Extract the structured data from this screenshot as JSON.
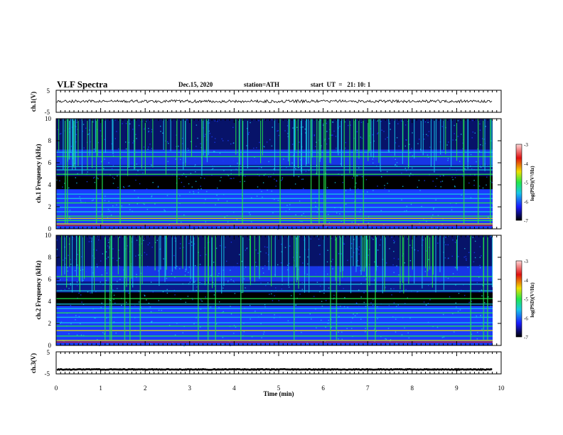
{
  "header": {
    "title": "VLF Spectra",
    "date": "Dec.15, 2020",
    "station": "station=ATH",
    "start": "start  UT  =   21: 10: 1"
  },
  "colors": {
    "black": "#000000",
    "dark_blue": "#0a1a8c",
    "blue": "#1a3cff",
    "cyan": "#18c8e6",
    "green": "#22e84a",
    "yellow": "#f0e000",
    "red": "#e01010",
    "pink": "#ffc8c8"
  },
  "chart_data": [
    {
      "type": "line",
      "panel": "ch1-waveform",
      "ylabel": "ch.1(V)",
      "ylim": [
        -5,
        5
      ],
      "yticks": [
        "5",
        "-5"
      ],
      "xlim": [
        0,
        9.8
      ],
      "series": [
        {
          "values_description_level": 0.0
        }
      ]
    },
    {
      "type": "heatmap",
      "panel": "ch1-spectrogram",
      "ylabel": "ch.1 Frequency (kHz)",
      "ylim": [
        0,
        10
      ],
      "yticks": [
        "0",
        "2",
        "4",
        "6",
        "8",
        "10"
      ],
      "xlim": [
        0,
        9.8
      ],
      "bands_khz": [
        0.5,
        0.8,
        1.0,
        1.2,
        1.6,
        2.0,
        2.4,
        2.8,
        3.2,
        5.0,
        5.4,
        5.7,
        6.6,
        7.0
      ],
      "colorbar": {
        "label": "log(PSD)(V²/Hz)",
        "min": -7,
        "max": -3,
        "ticks": [
          "-3",
          "-4",
          "-5",
          "-6",
          "-7"
        ]
      }
    },
    {
      "type": "heatmap",
      "panel": "ch2-spectrogram",
      "ylabel": "ch.2 Frequency (kHz)",
      "ylim": [
        0,
        10
      ],
      "yticks": [
        "0",
        "2",
        "4",
        "6",
        "8",
        "10"
      ],
      "xlim": [
        0,
        9.8
      ],
      "bands_khz": [
        0.5,
        0.9,
        1.4,
        1.8,
        2.1,
        2.6,
        3.0,
        3.4,
        3.8,
        4.3,
        5.0,
        5.6,
        6.3
      ],
      "colorbar": {
        "label": "log(PSD)(V²/Hz)",
        "min": -7,
        "max": -3,
        "ticks": [
          "-3",
          "-4",
          "-5",
          "-6",
          "-7"
        ]
      }
    },
    {
      "type": "line",
      "panel": "ch3-waveform",
      "ylabel": "ch.3(V)",
      "ylim": [
        -5,
        5
      ],
      "yticks": [
        "5",
        "-5"
      ],
      "xlim": [
        0,
        9.8
      ],
      "series": [
        {
          "values_description_level": -3.0
        }
      ]
    }
  ],
  "xaxis": {
    "label": "Time  (min)",
    "ticks": [
      "0",
      "1",
      "2",
      "3",
      "4",
      "5",
      "6",
      "7",
      "8",
      "9",
      "10"
    ],
    "range": [
      0,
      10
    ]
  }
}
